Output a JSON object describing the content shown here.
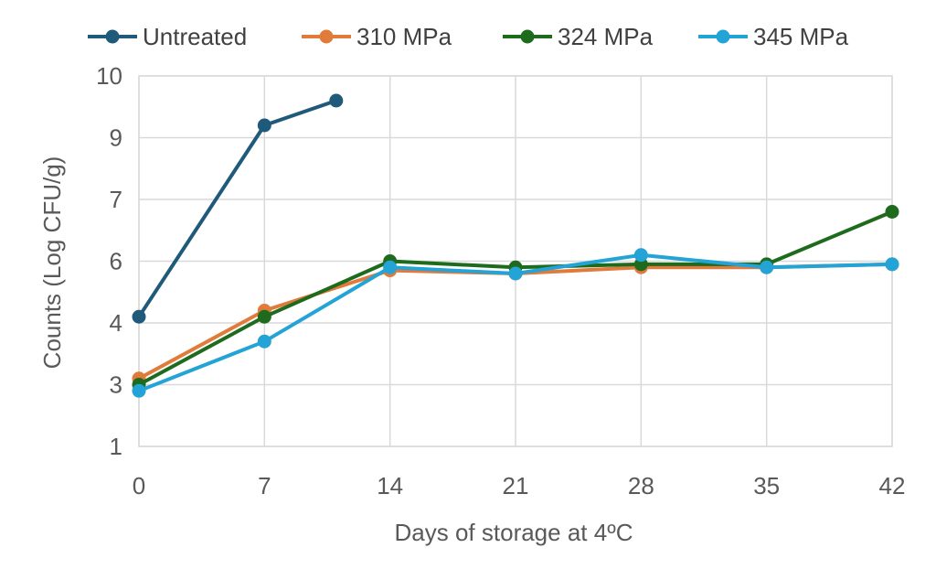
{
  "chart_data": {
    "type": "line",
    "title": "",
    "xlabel": "Days of storage at 4ºC",
    "ylabel": "Counts (Log CFU/g)",
    "x_ticks": [
      0,
      7,
      14,
      21,
      28,
      35,
      42
    ],
    "y_tick_labels": [
      "1",
      "3",
      "4",
      "6",
      "7",
      "9",
      "10"
    ],
    "grid": true,
    "legend_position": "top",
    "series": [
      {
        "name": "Untreated",
        "color": "#1f5a7a",
        "points": [
          {
            "x": 0,
            "y": 4.2
          },
          {
            "x": 7,
            "y": 9.2
          },
          {
            "x": 11,
            "y": 9.6
          }
        ]
      },
      {
        "name": "310 MPa",
        "color": "#e07b3c",
        "points": [
          {
            "x": 0,
            "y": 3.1
          },
          {
            "x": 7,
            "y": 4.4
          },
          {
            "x": 14,
            "y": 5.7
          },
          {
            "x": 21,
            "y": 5.6
          },
          {
            "x": 28,
            "y": 5.8
          },
          {
            "x": 35,
            "y": 5.8
          },
          {
            "x": 42,
            "y": 5.9
          }
        ]
      },
      {
        "name": "324 MPa",
        "color": "#1e6b1e",
        "points": [
          {
            "x": 0,
            "y": 3.0
          },
          {
            "x": 7,
            "y": 4.2
          },
          {
            "x": 14,
            "y": 6.0
          },
          {
            "x": 21,
            "y": 5.8
          },
          {
            "x": 28,
            "y": 5.9
          },
          {
            "x": 35,
            "y": 5.9
          },
          {
            "x": 42,
            "y": 6.8
          }
        ]
      },
      {
        "name": "345 MPa",
        "color": "#23a3d6",
        "points": [
          {
            "x": 0,
            "y": 2.8
          },
          {
            "x": 7,
            "y": 3.7
          },
          {
            "x": 14,
            "y": 5.8
          },
          {
            "x": 21,
            "y": 5.6
          },
          {
            "x": 28,
            "y": 6.1
          },
          {
            "x": 35,
            "y": 5.8
          },
          {
            "x": 42,
            "y": 5.9
          }
        ]
      }
    ]
  }
}
